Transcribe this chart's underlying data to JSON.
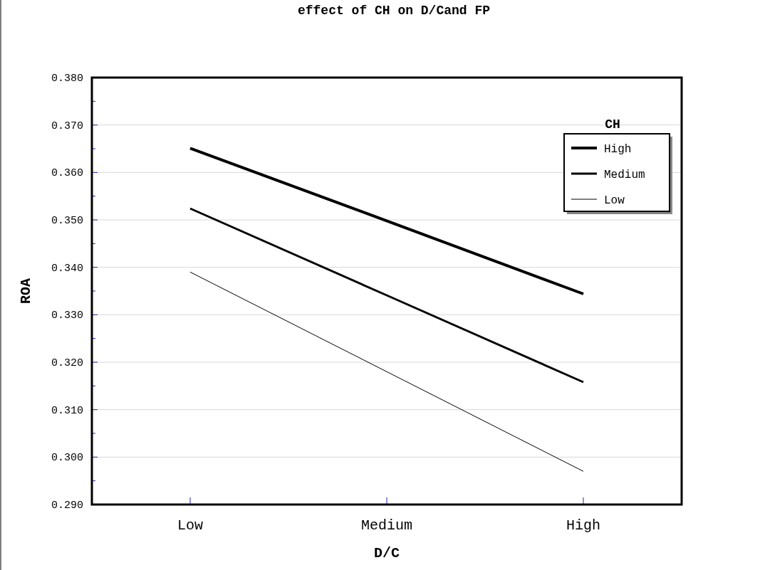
{
  "chart_data": {
    "type": "line",
    "title": "effect of CH on D/Cand FP",
    "xlabel": "D/C",
    "ylabel": "ROA",
    "legend_title": "CH",
    "categories": [
      "Low",
      "Medium",
      "High"
    ],
    "series": [
      {
        "name": "High",
        "color": "#000000",
        "values": [
          0.3651,
          0.3498,
          0.3344
        ]
      },
      {
        "name": "Medium",
        "color": "#000000",
        "values": [
          0.3524,
          0.3341,
          0.3158
        ]
      },
      {
        "name": "Low",
        "color": "#000000",
        "values": [
          0.339,
          0.318,
          0.297
        ]
      }
    ],
    "ylim": [
      0.29,
      0.38
    ],
    "yticks": [
      {
        "value": 0.29,
        "label": "0.290"
      },
      {
        "value": 0.295,
        "label": null
      },
      {
        "value": 0.3,
        "label": "0.300"
      },
      {
        "value": 0.305,
        "label": null
      },
      {
        "value": 0.31,
        "label": "0.310"
      },
      {
        "value": 0.315,
        "label": null
      },
      {
        "value": 0.32,
        "label": "0.320"
      },
      {
        "value": 0.325,
        "label": null
      },
      {
        "value": 0.33,
        "label": "0.330"
      },
      {
        "value": 0.335,
        "label": null
      },
      {
        "value": 0.34,
        "label": "0.340"
      },
      {
        "value": 0.345,
        "label": null
      },
      {
        "value": 0.35,
        "label": "0.350"
      },
      {
        "value": 0.355,
        "label": null
      },
      {
        "value": 0.36,
        "label": "0.360"
      },
      {
        "value": 0.365,
        "label": null
      },
      {
        "value": 0.37,
        "label": "0.370"
      },
      {
        "value": 0.375,
        "label": null
      },
      {
        "value": 0.38,
        "label": "0.380"
      }
    ],
    "grid": "y",
    "legend": "top right",
    "marker": "none",
    "line_style": "solid"
  }
}
